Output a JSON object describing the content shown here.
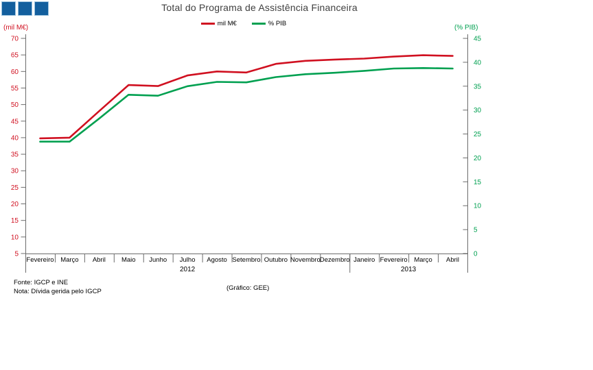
{
  "header": {
    "title": "Total do Programa de Assistência Financeira",
    "logo_color": "#135f9e",
    "logo_square_count": 3
  },
  "footer": {
    "fonte": "Fonte: IGCP e INE",
    "nota": "Nota: Dívida gerida pelo IGCP",
    "grafico": "(Gráfico: GEE)"
  },
  "chart_data": {
    "type": "line",
    "title": "Total do Programa de Assistência Financeira",
    "categories": [
      "Fevereiro",
      "Março",
      "Abril",
      "Maio",
      "Junho",
      "Julho",
      "Agosto",
      "Setembro",
      "Outubro",
      "Novembro",
      "Dezembro",
      "Janeiro",
      "Fevereiro",
      "Março",
      "Abril"
    ],
    "year_groups": [
      {
        "label": "2012",
        "from": 0,
        "to": 10
      },
      {
        "label": "2013",
        "from": 11,
        "to": 14
      }
    ],
    "series": [
      {
        "name": "mil M€",
        "axis": "left",
        "color": "#d01020",
        "values": [
          39.8,
          40.0,
          48.0,
          55.9,
          55.6,
          58.8,
          60.0,
          59.7,
          62.3,
          63.2,
          63.6,
          63.9,
          64.5,
          64.9,
          64.7
        ]
      },
      {
        "name": "% PIB",
        "axis": "right",
        "color": "#00a050",
        "values": [
          23.4,
          23.4,
          28.2,
          33.2,
          33.0,
          35.0,
          35.9,
          35.8,
          36.9,
          37.5,
          37.8,
          38.2,
          38.7,
          38.8,
          38.7
        ]
      }
    ],
    "left_axis": {
      "label": "(mil M€)",
      "min": 5,
      "max": 70,
      "step": 5,
      "color": "#d01020"
    },
    "right_axis": {
      "label": "(% PIB)",
      "min": 0,
      "max": 45,
      "step": 5,
      "color": "#00a050"
    },
    "grid": false,
    "legend_position": "top",
    "xlabel": ""
  }
}
